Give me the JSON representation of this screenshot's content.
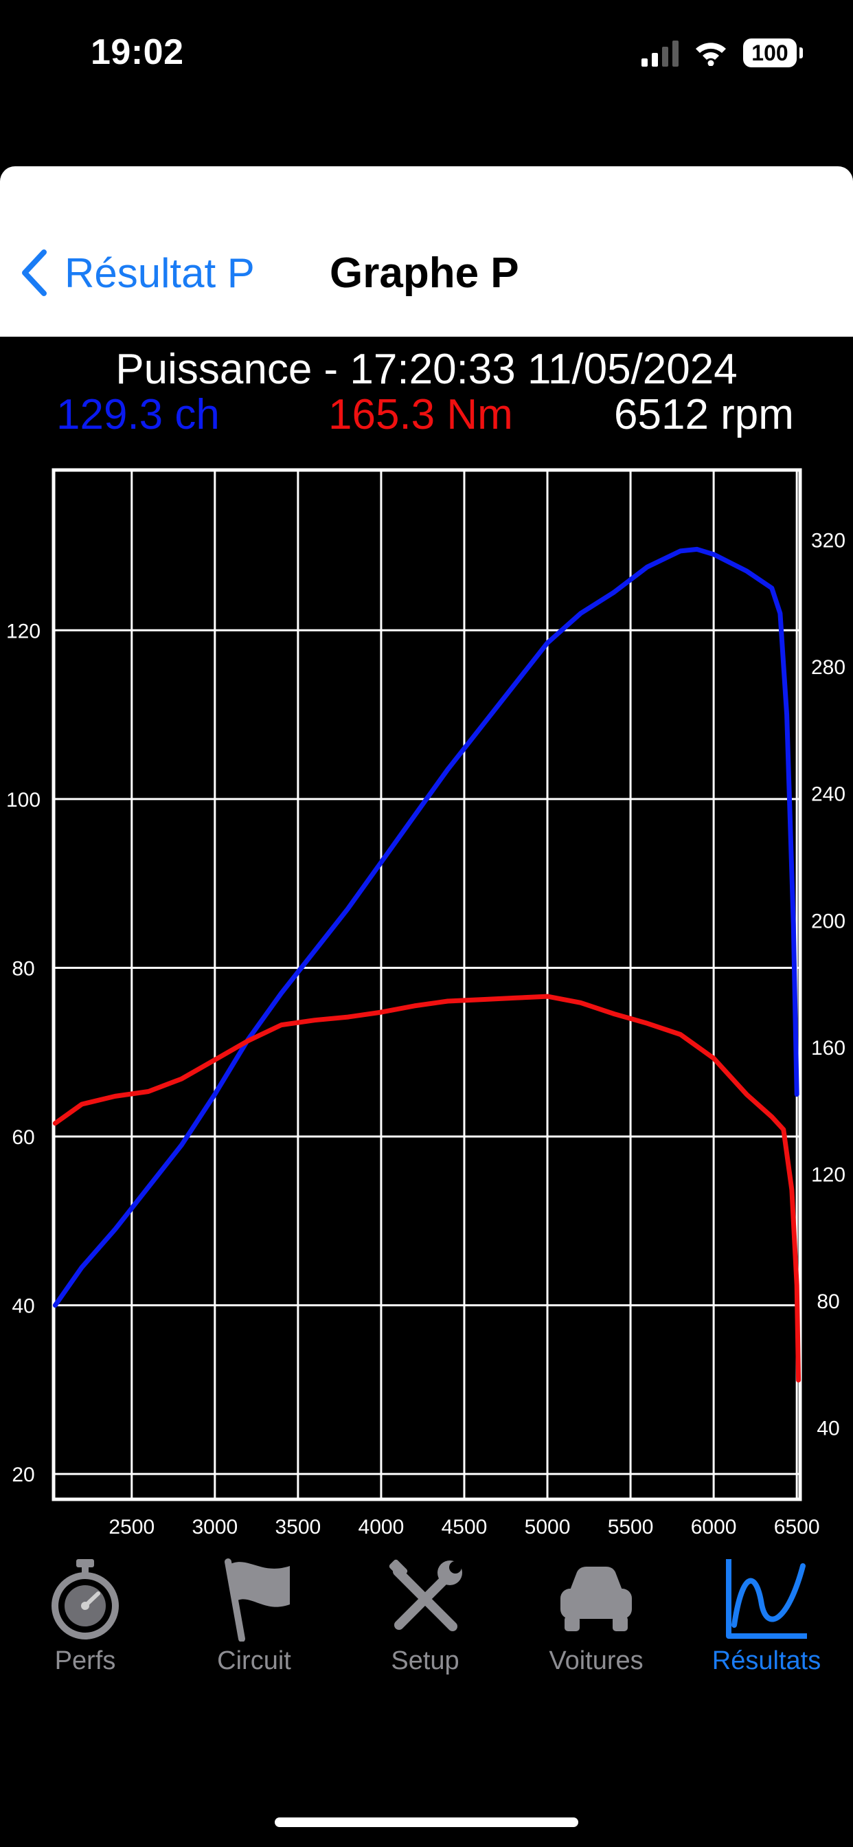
{
  "status": {
    "time": "19:02",
    "battery": "100"
  },
  "nav": {
    "back_label": "Résultat P",
    "title": "Graphe P"
  },
  "header": {
    "title": "Puissance - 17:20:33 11/05/2024",
    "power": "129.3 ch",
    "torque": "165.3 Nm",
    "rpm": "6512 rpm"
  },
  "colors": {
    "power": "#0a1af0",
    "torque": "#f01010",
    "accent": "#1a7cf5",
    "inactive": "#8e8e93"
  },
  "chart_data": {
    "type": "line",
    "x_ticks": [
      2500,
      3000,
      3500,
      4000,
      4500,
      5000,
      5500,
      6000,
      6500
    ],
    "x_range": [
      2030,
      6520
    ],
    "left_ticks": [
      20,
      40,
      60,
      80,
      100,
      120
    ],
    "left_range": [
      17,
      139
    ],
    "right_ticks": [
      40,
      80,
      120,
      160,
      200,
      240,
      280,
      320
    ],
    "right_range": [
      17.4,
      342
    ],
    "grid": true,
    "series": [
      {
        "axis": "left",
        "color": "#0a1af0",
        "points": [
          [
            2040,
            40
          ],
          [
            2200,
            44.5
          ],
          [
            2400,
            49
          ],
          [
            2600,
            54
          ],
          [
            2800,
            59
          ],
          [
            3000,
            65
          ],
          [
            3200,
            71.5
          ],
          [
            3400,
            77
          ],
          [
            3600,
            82
          ],
          [
            3800,
            87
          ],
          [
            4000,
            92.5
          ],
          [
            4200,
            98
          ],
          [
            4400,
            103.5
          ],
          [
            4600,
            108.5
          ],
          [
            4800,
            113.5
          ],
          [
            5000,
            118.5
          ],
          [
            5200,
            122
          ],
          [
            5400,
            124.5
          ],
          [
            5600,
            127.5
          ],
          [
            5800,
            129.4
          ],
          [
            5900,
            129.6
          ],
          [
            6000,
            129
          ],
          [
            6200,
            127
          ],
          [
            6350,
            125
          ],
          [
            6400,
            122
          ],
          [
            6440,
            110
          ],
          [
            6480,
            85
          ],
          [
            6500,
            65
          ]
        ]
      },
      {
        "axis": "right",
        "color": "#f01010",
        "points": [
          [
            2040,
            136
          ],
          [
            2200,
            142
          ],
          [
            2400,
            144.5
          ],
          [
            2600,
            146
          ],
          [
            2800,
            150
          ],
          [
            3000,
            156
          ],
          [
            3200,
            162
          ],
          [
            3400,
            167
          ],
          [
            3600,
            168.5
          ],
          [
            3800,
            169.5
          ],
          [
            4000,
            171
          ],
          [
            4200,
            173
          ],
          [
            4400,
            174.5
          ],
          [
            4600,
            175
          ],
          [
            4800,
            175.5
          ],
          [
            5000,
            176
          ],
          [
            5200,
            174
          ],
          [
            5400,
            170.5
          ],
          [
            5600,
            167.5
          ],
          [
            5800,
            164
          ],
          [
            6000,
            156.5
          ],
          [
            6200,
            145
          ],
          [
            6350,
            138
          ],
          [
            6420,
            134
          ],
          [
            6470,
            115
          ],
          [
            6500,
            85
          ],
          [
            6510,
            55
          ]
        ]
      }
    ]
  },
  "tabs": [
    {
      "label": "Perfs",
      "icon": "stopwatch-icon",
      "active": false
    },
    {
      "label": "Circuit",
      "icon": "flag-icon",
      "active": false
    },
    {
      "label": "Setup",
      "icon": "tools-icon",
      "active": false
    },
    {
      "label": "Voitures",
      "icon": "car-icon",
      "active": false
    },
    {
      "label": "Résultats",
      "icon": "graph-icon",
      "active": true
    }
  ]
}
